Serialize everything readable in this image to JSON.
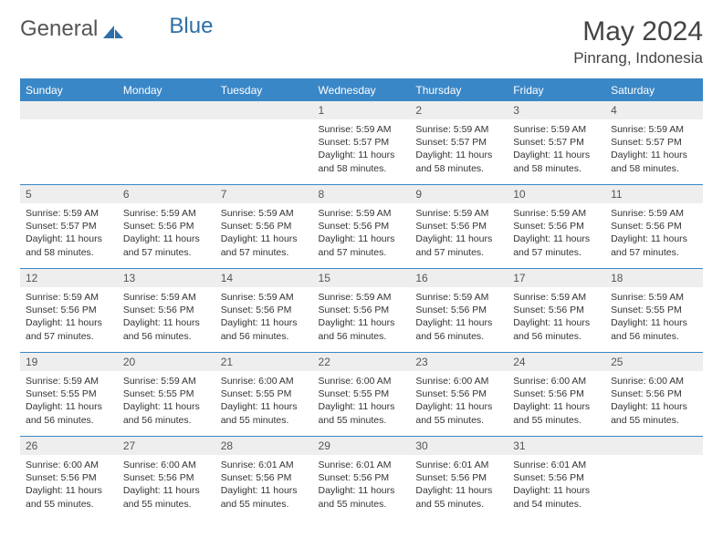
{
  "brand": {
    "part1": "General",
    "part2": "Blue"
  },
  "title": {
    "month": "May 2024",
    "location": "Pinrang, Indonesia"
  },
  "colors": {
    "header_bg": "#3a87c7",
    "header_text": "#ffffff",
    "daynum_bg": "#eeeeee",
    "body_text": "#333333",
    "rule": "#3a87c7"
  },
  "typography": {
    "title_fontsize": 30,
    "location_fontsize": 17,
    "dayhead_fontsize": 12,
    "body_fontsize": 10.5
  },
  "dayNames": [
    "Sunday",
    "Monday",
    "Tuesday",
    "Wednesday",
    "Thursday",
    "Friday",
    "Saturday"
  ],
  "weeks": [
    [
      null,
      null,
      null,
      {
        "n": "1",
        "sunrise": "5:59 AM",
        "sunset": "5:57 PM",
        "dl": "11 hours and 58 minutes."
      },
      {
        "n": "2",
        "sunrise": "5:59 AM",
        "sunset": "5:57 PM",
        "dl": "11 hours and 58 minutes."
      },
      {
        "n": "3",
        "sunrise": "5:59 AM",
        "sunset": "5:57 PM",
        "dl": "11 hours and 58 minutes."
      },
      {
        "n": "4",
        "sunrise": "5:59 AM",
        "sunset": "5:57 PM",
        "dl": "11 hours and 58 minutes."
      }
    ],
    [
      {
        "n": "5",
        "sunrise": "5:59 AM",
        "sunset": "5:57 PM",
        "dl": "11 hours and 58 minutes."
      },
      {
        "n": "6",
        "sunrise": "5:59 AM",
        "sunset": "5:56 PM",
        "dl": "11 hours and 57 minutes."
      },
      {
        "n": "7",
        "sunrise": "5:59 AM",
        "sunset": "5:56 PM",
        "dl": "11 hours and 57 minutes."
      },
      {
        "n": "8",
        "sunrise": "5:59 AM",
        "sunset": "5:56 PM",
        "dl": "11 hours and 57 minutes."
      },
      {
        "n": "9",
        "sunrise": "5:59 AM",
        "sunset": "5:56 PM",
        "dl": "11 hours and 57 minutes."
      },
      {
        "n": "10",
        "sunrise": "5:59 AM",
        "sunset": "5:56 PM",
        "dl": "11 hours and 57 minutes."
      },
      {
        "n": "11",
        "sunrise": "5:59 AM",
        "sunset": "5:56 PM",
        "dl": "11 hours and 57 minutes."
      }
    ],
    [
      {
        "n": "12",
        "sunrise": "5:59 AM",
        "sunset": "5:56 PM",
        "dl": "11 hours and 57 minutes."
      },
      {
        "n": "13",
        "sunrise": "5:59 AM",
        "sunset": "5:56 PM",
        "dl": "11 hours and 56 minutes."
      },
      {
        "n": "14",
        "sunrise": "5:59 AM",
        "sunset": "5:56 PM",
        "dl": "11 hours and 56 minutes."
      },
      {
        "n": "15",
        "sunrise": "5:59 AM",
        "sunset": "5:56 PM",
        "dl": "11 hours and 56 minutes."
      },
      {
        "n": "16",
        "sunrise": "5:59 AM",
        "sunset": "5:56 PM",
        "dl": "11 hours and 56 minutes."
      },
      {
        "n": "17",
        "sunrise": "5:59 AM",
        "sunset": "5:56 PM",
        "dl": "11 hours and 56 minutes."
      },
      {
        "n": "18",
        "sunrise": "5:59 AM",
        "sunset": "5:55 PM",
        "dl": "11 hours and 56 minutes."
      }
    ],
    [
      {
        "n": "19",
        "sunrise": "5:59 AM",
        "sunset": "5:55 PM",
        "dl": "11 hours and 56 minutes."
      },
      {
        "n": "20",
        "sunrise": "5:59 AM",
        "sunset": "5:55 PM",
        "dl": "11 hours and 56 minutes."
      },
      {
        "n": "21",
        "sunrise": "6:00 AM",
        "sunset": "5:55 PM",
        "dl": "11 hours and 55 minutes."
      },
      {
        "n": "22",
        "sunrise": "6:00 AM",
        "sunset": "5:55 PM",
        "dl": "11 hours and 55 minutes."
      },
      {
        "n": "23",
        "sunrise": "6:00 AM",
        "sunset": "5:56 PM",
        "dl": "11 hours and 55 minutes."
      },
      {
        "n": "24",
        "sunrise": "6:00 AM",
        "sunset": "5:56 PM",
        "dl": "11 hours and 55 minutes."
      },
      {
        "n": "25",
        "sunrise": "6:00 AM",
        "sunset": "5:56 PM",
        "dl": "11 hours and 55 minutes."
      }
    ],
    [
      {
        "n": "26",
        "sunrise": "6:00 AM",
        "sunset": "5:56 PM",
        "dl": "11 hours and 55 minutes."
      },
      {
        "n": "27",
        "sunrise": "6:00 AM",
        "sunset": "5:56 PM",
        "dl": "11 hours and 55 minutes."
      },
      {
        "n": "28",
        "sunrise": "6:01 AM",
        "sunset": "5:56 PM",
        "dl": "11 hours and 55 minutes."
      },
      {
        "n": "29",
        "sunrise": "6:01 AM",
        "sunset": "5:56 PM",
        "dl": "11 hours and 55 minutes."
      },
      {
        "n": "30",
        "sunrise": "6:01 AM",
        "sunset": "5:56 PM",
        "dl": "11 hours and 55 minutes."
      },
      {
        "n": "31",
        "sunrise": "6:01 AM",
        "sunset": "5:56 PM",
        "dl": "11 hours and 54 minutes."
      },
      null
    ]
  ],
  "labels": {
    "sunrise": "Sunrise:",
    "sunset": "Sunset:",
    "daylight": "Daylight:"
  }
}
